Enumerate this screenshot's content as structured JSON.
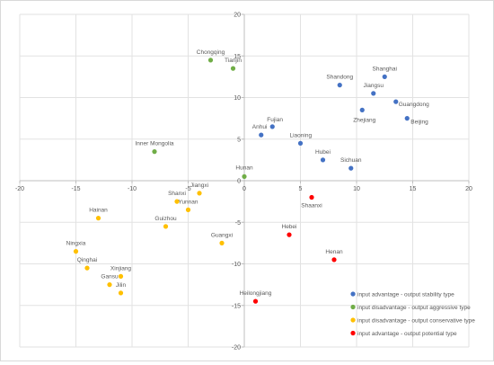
{
  "chart_data": {
    "type": "scatter",
    "xlim": [
      -20,
      20
    ],
    "ylim": [
      -20,
      20
    ],
    "x_ticks": [
      -20,
      -15,
      -10,
      -5,
      0,
      5,
      10,
      15,
      20
    ],
    "y_ticks": [
      -20,
      -15,
      -10,
      -5,
      0,
      5,
      10,
      15,
      20
    ],
    "grid": true,
    "legend_position": "bottom-right",
    "series": [
      {
        "name": "input advantage - output stability type",
        "color": "#4472C4",
        "points": [
          {
            "label": "Shanghai",
            "x": 12.5,
            "y": 12.5
          },
          {
            "label": "Shandong",
            "x": 8.5,
            "y": 11.5
          },
          {
            "label": "Jiangsu",
            "x": 11.5,
            "y": 10.5
          },
          {
            "label": "Guangdong",
            "x": 13.5,
            "y": 9.5
          },
          {
            "label": "Zhejiang",
            "x": 10.5,
            "y": 8.5
          },
          {
            "label": "Beijing",
            "x": 14.5,
            "y": 7.5
          },
          {
            "label": "Fujian",
            "x": 2.5,
            "y": 6.5
          },
          {
            "label": "Anhui",
            "x": 1.5,
            "y": 5.5
          },
          {
            "label": "Liaoning",
            "x": 5,
            "y": 4.5
          },
          {
            "label": "Hubei",
            "x": 7,
            "y": 2.5
          },
          {
            "label": "Sichuan",
            "x": 9.5,
            "y": 1.5
          }
        ]
      },
      {
        "name": "input disadvantage - output aggressive type",
        "color": "#70AD47",
        "points": [
          {
            "label": "Chongqing",
            "x": -3,
            "y": 14.5
          },
          {
            "label": "Tianjin",
            "x": -1,
            "y": 13.5
          },
          {
            "label": "Inner Mongolia",
            "x": -8,
            "y": 3.5
          },
          {
            "label": "Hunan",
            "x": 0,
            "y": 0.5
          }
        ]
      },
      {
        "name": "input disadvantage - output conservative type",
        "color": "#FFC000",
        "points": [
          {
            "label": "Jiangxi",
            "x": -4,
            "y": -1.5
          },
          {
            "label": "Shanxi",
            "x": -6,
            "y": -2.5
          },
          {
            "label": "Yunnan",
            "x": -5,
            "y": -3.5
          },
          {
            "label": "Hainan",
            "x": -13,
            "y": -4.5
          },
          {
            "label": "Guizhou",
            "x": -7,
            "y": -5.5
          },
          {
            "label": "Guangxi",
            "x": -2,
            "y": -7.5
          },
          {
            "label": "Ningxia",
            "x": -15,
            "y": -8.5
          },
          {
            "label": "Qinghai",
            "x": -14,
            "y": -10.5
          },
          {
            "label": "Xinjiang",
            "x": -11,
            "y": -11.5
          },
          {
            "label": "Gansu",
            "x": -12,
            "y": -12.5
          },
          {
            "label": "Jilin",
            "x": -11,
            "y": -13.5
          }
        ]
      },
      {
        "name": "input advantage - output potential type",
        "color": "#FF0000",
        "points": [
          {
            "label": "Shaanxi",
            "x": 6,
            "y": -2
          },
          {
            "label": "Hebei",
            "x": 4,
            "y": -6.5
          },
          {
            "label": "Henan",
            "x": 8,
            "y": -9.5
          },
          {
            "label": "Heilongjiang",
            "x": 1,
            "y": -14.5
          }
        ]
      }
    ]
  }
}
